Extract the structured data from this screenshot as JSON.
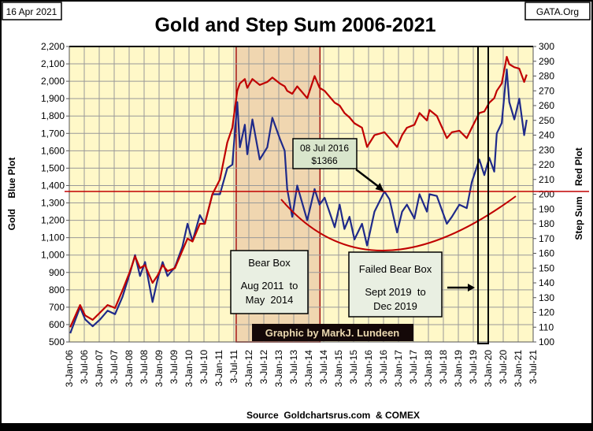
{
  "header": {
    "date_label": "16 Apr 2021",
    "site_label": "GATA.Org"
  },
  "chart_data": {
    "type": "line",
    "title": "Gold and Step Sum 2006-2021",
    "ylabel_left": "Gold    Blue Plot",
    "ylabel_right": "Step Sum    Red Plot",
    "source": "Source  Goldchartsrus.com  & COMEX",
    "credit": "Graphic by MarkJ. Lundeen",
    "grid": true,
    "ylim_left": [
      500,
      2200
    ],
    "ylim_right": [
      100,
      300
    ],
    "xlim": [
      "2006-01-03",
      "2021-07-03"
    ],
    "y_ticks_left": [
      "500",
      "600",
      "700",
      "800",
      "900",
      "1,000",
      "1,100",
      "1,200",
      "1,300",
      "1,400",
      "1,500",
      "1,600",
      "1,700",
      "1,800",
      "1,900",
      "2,000",
      "2,100",
      "2,200"
    ],
    "y_ticks_right": [
      "100",
      "110",
      "120",
      "130",
      "140",
      "150",
      "160",
      "170",
      "180",
      "190",
      "200",
      "210",
      "220",
      "230",
      "240",
      "250",
      "260",
      "270",
      "280",
      "290",
      "300"
    ],
    "x_ticks": [
      "3-Jan-06",
      "3-Jul-06",
      "3-Jan-07",
      "3-Jul-07",
      "3-Jan-08",
      "3-Jul-08",
      "3-Jan-09",
      "3-Jul-09",
      "3-Jan-10",
      "3-Jul-10",
      "3-Jan-11",
      "3-Jul-11",
      "3-Jan-12",
      "3-Jul-12",
      "3-Jan-13",
      "3-Jul-13",
      "3-Jan-14",
      "3-Jul-14",
      "3-Jan-15",
      "3-Jul-15",
      "3-Jan-16",
      "3-Jul-16",
      "3-Jan-17",
      "3-Jul-17",
      "3-Jan-18",
      "3-Jul-18",
      "3-Jan-19",
      "3-Jul-19",
      "3-Jan-20",
      "3-Jul-20",
      "3-Jan-21",
      "3-Jul-21"
    ],
    "colors": {
      "gold": "#1f2a8a",
      "step_sum": "#c00000",
      "plot_bg": "#fff8c8",
      "bear_box": "#f0d6b0"
    },
    "series": [
      {
        "key": "gold",
        "axis": "left",
        "points": [
          [
            "2006-01",
            550
          ],
          [
            "2006-05",
            700
          ],
          [
            "2006-07",
            630
          ],
          [
            "2006-10",
            590
          ],
          [
            "2007-01",
            630
          ],
          [
            "2007-04",
            680
          ],
          [
            "2007-07",
            660
          ],
          [
            "2007-10",
            760
          ],
          [
            "2008-01",
            900
          ],
          [
            "2008-03",
            1000
          ],
          [
            "2008-05",
            880
          ],
          [
            "2008-07",
            960
          ],
          [
            "2008-10",
            730
          ],
          [
            "2008-12",
            860
          ],
          [
            "2009-02",
            960
          ],
          [
            "2009-04",
            880
          ],
          [
            "2009-07",
            930
          ],
          [
            "2009-10",
            1050
          ],
          [
            "2009-12",
            1180
          ],
          [
            "2010-02",
            1080
          ],
          [
            "2010-05",
            1230
          ],
          [
            "2010-07",
            1180
          ],
          [
            "2010-10",
            1350
          ],
          [
            "2011-01",
            1350
          ],
          [
            "2011-04",
            1500
          ],
          [
            "2011-06",
            1520
          ],
          [
            "2011-08",
            1880
          ],
          [
            "2011-09",
            1620
          ],
          [
            "2011-11",
            1750
          ],
          [
            "2011-12",
            1580
          ],
          [
            "2012-02",
            1780
          ],
          [
            "2012-05",
            1550
          ],
          [
            "2012-08",
            1620
          ],
          [
            "2012-10",
            1790
          ],
          [
            "2013-01",
            1670
          ],
          [
            "2013-03",
            1600
          ],
          [
            "2013-04",
            1380
          ],
          [
            "2013-06",
            1220
          ],
          [
            "2013-08",
            1400
          ],
          [
            "2013-12",
            1200
          ],
          [
            "2014-03",
            1380
          ],
          [
            "2014-05",
            1290
          ],
          [
            "2014-07",
            1330
          ],
          [
            "2014-11",
            1160
          ],
          [
            "2015-01",
            1290
          ],
          [
            "2015-03",
            1150
          ],
          [
            "2015-05",
            1220
          ],
          [
            "2015-07",
            1090
          ],
          [
            "2015-10",
            1180
          ],
          [
            "2015-12",
            1055
          ],
          [
            "2016-03",
            1250
          ],
          [
            "2016-07",
            1366
          ],
          [
            "2016-09",
            1320
          ],
          [
            "2016-12",
            1130
          ],
          [
            "2017-02",
            1250
          ],
          [
            "2017-04",
            1290
          ],
          [
            "2017-07",
            1210
          ],
          [
            "2017-09",
            1350
          ],
          [
            "2017-12",
            1250
          ],
          [
            "2018-01",
            1350
          ],
          [
            "2018-04",
            1340
          ],
          [
            "2018-08",
            1180
          ],
          [
            "2018-10",
            1220
          ],
          [
            "2019-01",
            1290
          ],
          [
            "2019-04",
            1270
          ],
          [
            "2019-06",
            1420
          ],
          [
            "2019-09",
            1550
          ],
          [
            "2019-11",
            1460
          ],
          [
            "2020-01",
            1560
          ],
          [
            "2020-03",
            1480
          ],
          [
            "2020-04",
            1700
          ],
          [
            "2020-06",
            1760
          ],
          [
            "2020-08",
            2068
          ],
          [
            "2020-09",
            1880
          ],
          [
            "2020-11",
            1780
          ],
          [
            "2021-01",
            1900
          ],
          [
            "2021-03",
            1690
          ],
          [
            "2021-04",
            1778
          ]
        ]
      },
      {
        "key": "step_sum",
        "axis": "right",
        "points": [
          [
            "2006-01",
            110
          ],
          [
            "2006-05",
            125
          ],
          [
            "2006-07",
            118
          ],
          [
            "2006-10",
            115
          ],
          [
            "2007-01",
            120
          ],
          [
            "2007-04",
            125
          ],
          [
            "2007-07",
            123
          ],
          [
            "2007-10",
            135
          ],
          [
            "2008-01",
            148
          ],
          [
            "2008-03",
            158
          ],
          [
            "2008-05",
            150
          ],
          [
            "2008-07",
            152
          ],
          [
            "2008-10",
            140
          ],
          [
            "2008-12",
            145
          ],
          [
            "2009-02",
            152
          ],
          [
            "2009-04",
            148
          ],
          [
            "2009-07",
            150
          ],
          [
            "2009-10",
            162
          ],
          [
            "2009-12",
            170
          ],
          [
            "2010-02",
            168
          ],
          [
            "2010-05",
            180
          ],
          [
            "2010-07",
            180
          ],
          [
            "2010-10",
            200
          ],
          [
            "2011-01",
            210
          ],
          [
            "2011-04",
            235
          ],
          [
            "2011-06",
            245
          ],
          [
            "2011-08",
            270
          ],
          [
            "2011-09",
            275
          ],
          [
            "2011-11",
            278
          ],
          [
            "2011-12",
            272
          ],
          [
            "2012-02",
            278
          ],
          [
            "2012-05",
            274
          ],
          [
            "2012-08",
            276
          ],
          [
            "2012-10",
            279
          ],
          [
            "2013-01",
            275
          ],
          [
            "2013-03",
            273
          ],
          [
            "2013-04",
            270
          ],
          [
            "2013-06",
            268
          ],
          [
            "2013-08",
            273
          ],
          [
            "2013-12",
            265
          ],
          [
            "2014-03",
            280
          ],
          [
            "2014-05",
            272
          ],
          [
            "2014-07",
            270
          ],
          [
            "2014-11",
            262
          ],
          [
            "2015-01",
            260
          ],
          [
            "2015-03",
            255
          ],
          [
            "2015-05",
            252
          ],
          [
            "2015-07",
            248
          ],
          [
            "2015-10",
            245
          ],
          [
            "2015-12",
            232
          ],
          [
            "2016-03",
            240
          ],
          [
            "2016-07",
            242
          ],
          [
            "2016-09",
            238
          ],
          [
            "2016-12",
            232
          ],
          [
            "2017-02",
            240
          ],
          [
            "2017-04",
            245
          ],
          [
            "2017-07",
            247
          ],
          [
            "2017-09",
            255
          ],
          [
            "2017-12",
            250
          ],
          [
            "2018-01",
            257
          ],
          [
            "2018-04",
            253
          ],
          [
            "2018-08",
            238
          ],
          [
            "2018-10",
            242
          ],
          [
            "2019-01",
            243
          ],
          [
            "2019-04",
            238
          ],
          [
            "2019-06",
            245
          ],
          [
            "2019-09",
            255
          ],
          [
            "2019-11",
            256
          ],
          [
            "2020-01",
            262
          ],
          [
            "2020-03",
            265
          ],
          [
            "2020-04",
            270
          ],
          [
            "2020-06",
            275
          ],
          [
            "2020-08",
            293
          ],
          [
            "2020-09",
            288
          ],
          [
            "2020-11",
            286
          ],
          [
            "2021-01",
            285
          ],
          [
            "2021-03",
            276
          ],
          [
            "2021-04",
            281
          ]
        ]
      }
    ],
    "reference_line": {
      "axis": "left",
      "value": 1366
    },
    "bear_box": {
      "start": "2011-08",
      "end": "2014-05",
      "title": "Bear Box",
      "line1": "Aug 2011  to",
      "line2": "May  2014"
    },
    "failed_bear_box": {
      "start": "2019-09",
      "end": "2019-12",
      "title": "Failed Bear Box",
      "line1": "Sept 2019  to",
      "line2": "Dec 2019"
    },
    "callout": {
      "line1": "08 Jul 2016",
      "line2": "$1366",
      "date": "2016-07",
      "value": 1366
    }
  }
}
